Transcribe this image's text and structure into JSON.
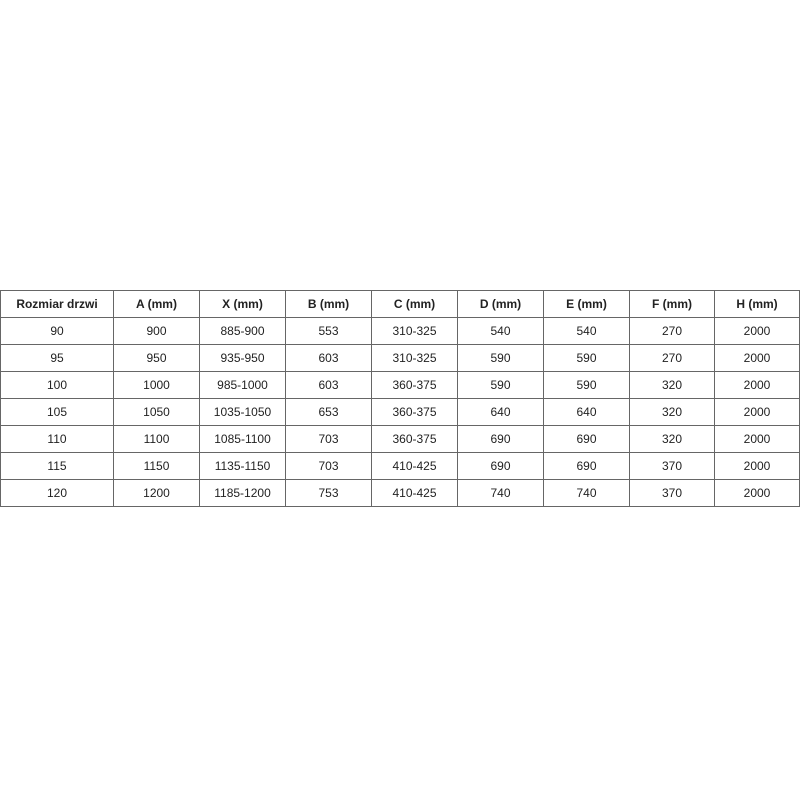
{
  "table": {
    "headers": [
      "Rozmiar drzwi",
      "A (mm)",
      "X (mm)",
      "B (mm)",
      "C (mm)",
      "D (mm)",
      "E (mm)",
      "F (mm)",
      "H (mm)"
    ],
    "rows": [
      [
        "90",
        "900",
        "885-900",
        "553",
        "310-325",
        "540",
        "540",
        "270",
        "2000"
      ],
      [
        "95",
        "950",
        "935-950",
        "603",
        "310-325",
        "590",
        "590",
        "270",
        "2000"
      ],
      [
        "100",
        "1000",
        "985-1000",
        "603",
        "360-375",
        "590",
        "590",
        "320",
        "2000"
      ],
      [
        "105",
        "1050",
        "1035-1050",
        "653",
        "360-375",
        "640",
        "640",
        "320",
        "2000"
      ],
      [
        "110",
        "1100",
        "1085-1100",
        "703",
        "360-375",
        "690",
        "690",
        "320",
        "2000"
      ],
      [
        "115",
        "1150",
        "1135-1150",
        "703",
        "410-425",
        "690",
        "690",
        "370",
        "2000"
      ],
      [
        "120",
        "1200",
        "1185-1200",
        "753",
        "410-425",
        "740",
        "740",
        "370",
        "2000"
      ]
    ]
  }
}
